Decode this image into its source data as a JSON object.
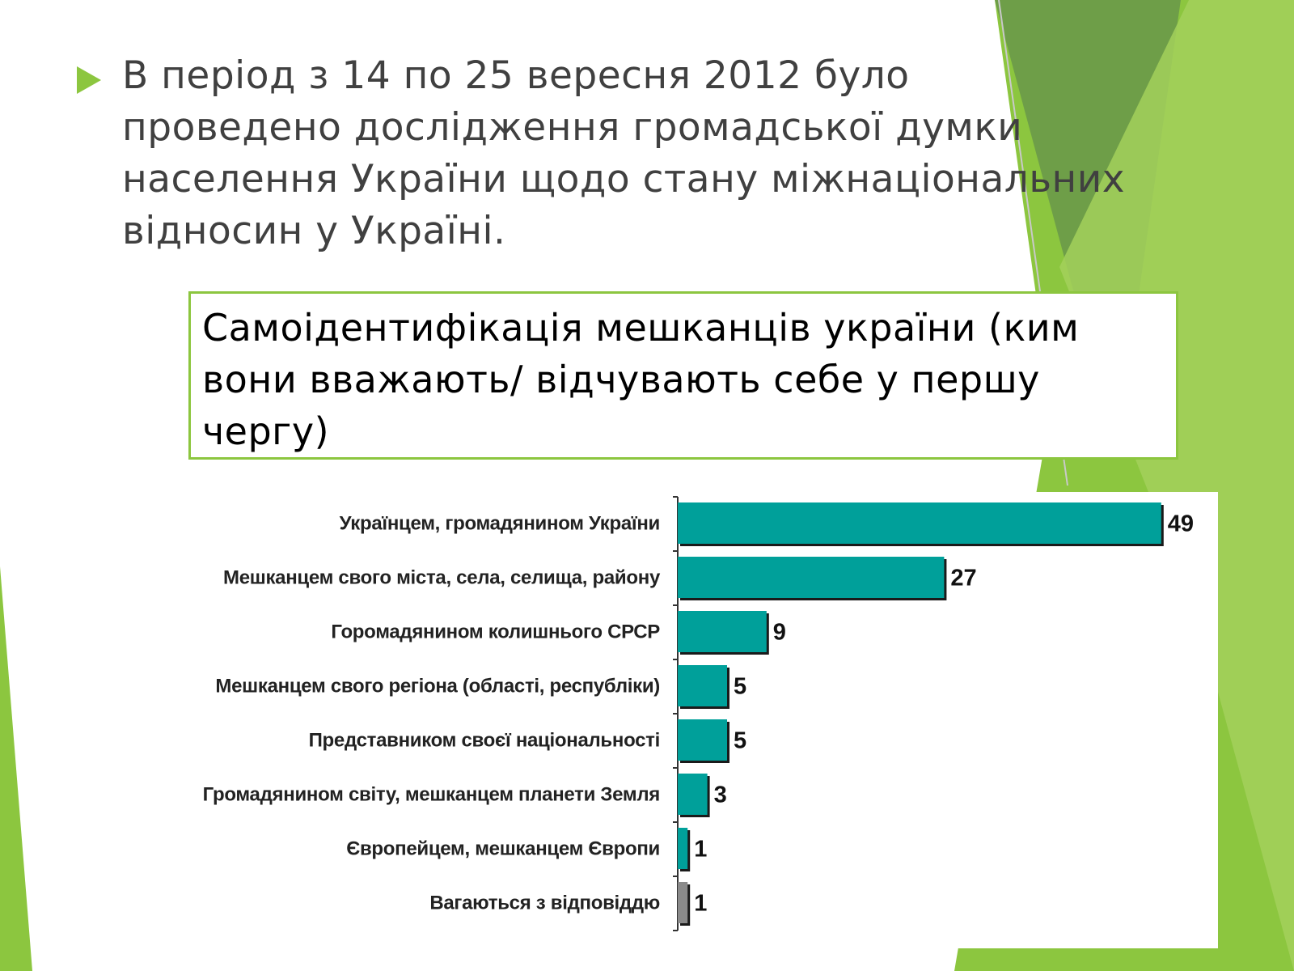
{
  "slide": {
    "bullet_text": "В період з 14 по 25 вересня 2012 було проведено дослідження громадської думки населення України щодо стану міжнаціональних відносин у Україні.",
    "title": "Самоідентифікація мешканців україни (ким вони вважають/ відчувають себе у першу чергу)"
  },
  "colors": {
    "accent_green": "#8cc63f",
    "dark_green": "#6e9e48",
    "bar_fill": "#00a09a",
    "bar_fill_undecided": "#8a8a8a",
    "text_gray": "#404040"
  },
  "chart_data": {
    "type": "bar",
    "orientation": "horizontal",
    "categories": [
      "Українцем, громадянином України",
      "Мешканцем свого міста, села, селища, району",
      "Горомадянином колишнього СРСР",
      "Мешканцем свого регіона (області, республіки)",
      "Представником своєї національності",
      "Громадянином світу, мешканцем планети Земля",
      "Європейцем, мешканцем Європи",
      "Вагаються з відповіддю"
    ],
    "values": [
      49,
      27,
      9,
      5,
      5,
      3,
      1,
      1
    ],
    "xlim": [
      0,
      50
    ],
    "data_labels": [
      "49",
      "27",
      "9",
      "5",
      "5",
      "3",
      "1",
      "1"
    ],
    "highlight_last_gray": true,
    "grid": false
  }
}
